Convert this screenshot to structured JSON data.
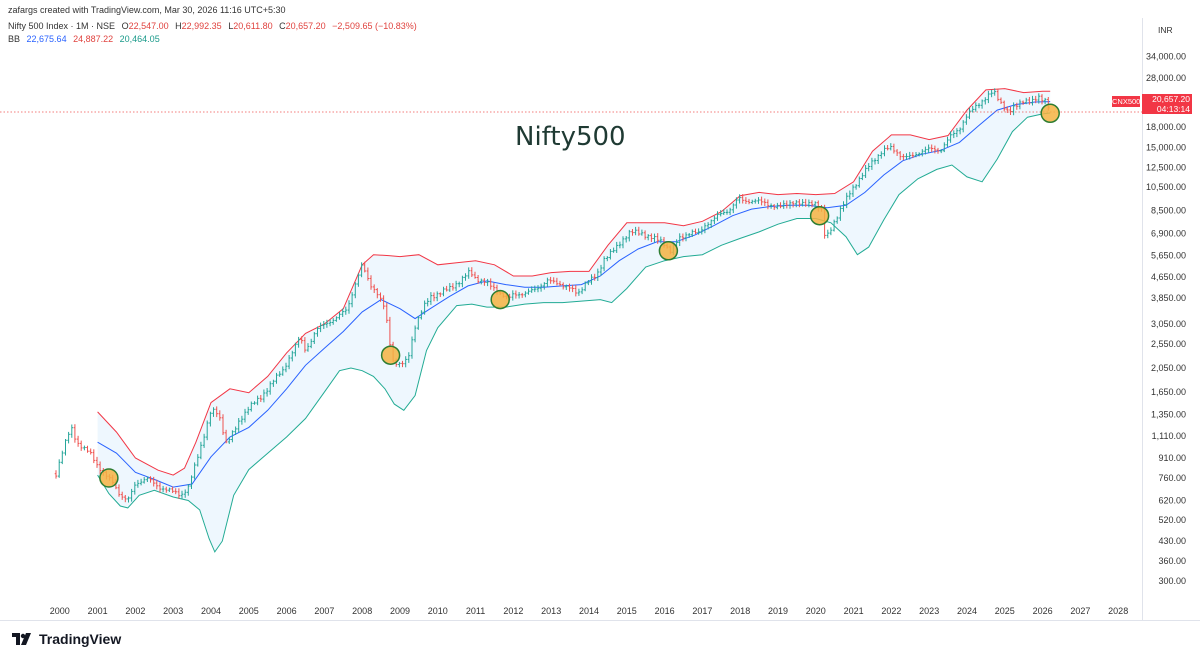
{
  "header": {
    "credit": "zafargs created with TradingView.com, Mar 30, 2026 11:16 UTC+5:30",
    "symbol": "Nifty 500 Index · 1M · NSE",
    "o_label": "O",
    "o_value": "22,547.00",
    "h_label": "H",
    "h_value": "22,992.35",
    "l_label": "L",
    "l_value": "20,611.80",
    "c_label": "C",
    "c_value": "20,657.20",
    "change": "−2,509.65 (−10.83%)",
    "bb_label": "BB",
    "bb_basis": "22,675.64",
    "bb_upper": "24,887.22",
    "bb_lower": "20,464.05"
  },
  "price_axis": {
    "currency": "INR",
    "ticks": [
      "34,000.00",
      "28,000.00",
      "23,000.00",
      "18,000.00",
      "15,000.00",
      "12,500.00",
      "10,500.00",
      "8,500.00",
      "6,900.00",
      "5,650.00",
      "4,650.00",
      "3,850.00",
      "3,050.00",
      "2,550.00",
      "2,050.00",
      "1,650.00",
      "1,350.00",
      "1,110.00",
      "910.00",
      "760.00",
      "620.00",
      "520.00",
      "430.00",
      "360.00",
      "300.00"
    ],
    "last_price": "20,657.20",
    "countdown": "04:13:14",
    "symbol_tag": "CNX500"
  },
  "annotation": "Nifty500",
  "brand": {
    "name": "TradingView"
  },
  "colors": {
    "up": "#26a69a",
    "down": "#ef5350",
    "basis": "#2962ff",
    "upper": "#f23645",
    "lower": "#22ab94",
    "band_fill": "#e3f2fd",
    "circle_fill": "#f5b342",
    "circle_stroke": "#2e7d32"
  },
  "chart_data": {
    "type": "candlestick",
    "scale": "log",
    "interval": "1M",
    "x_ticks": [
      "2000",
      "2001",
      "2002",
      "2003",
      "2004",
      "2005",
      "2006",
      "2007",
      "2008",
      "2009",
      "2010",
      "2011",
      "2012",
      "2013",
      "2014",
      "2015",
      "2016",
      "2017",
      "2018",
      "2019",
      "2020",
      "2021",
      "2022",
      "2023",
      "2024",
      "2025",
      "2026",
      "2027",
      "2028"
    ],
    "ylim": [
      270,
      40000
    ],
    "close_series": [
      [
        1999.9,
        790
      ],
      [
        2000.1,
        1000
      ],
      [
        2000.3,
        1200
      ],
      [
        2000.45,
        1050
      ],
      [
        2000.6,
        1000
      ],
      [
        2000.8,
        950
      ],
      [
        2001.0,
        850
      ],
      [
        2001.2,
        780
      ],
      [
        2001.4,
        730
      ],
      [
        2001.6,
        650
      ],
      [
        2001.8,
        620
      ],
      [
        2002.0,
        720
      ],
      [
        2002.3,
        760
      ],
      [
        2002.6,
        700
      ],
      [
        2002.9,
        680
      ],
      [
        2003.2,
        650
      ],
      [
        2003.4,
        700
      ],
      [
        2003.6,
        870
      ],
      [
        2003.8,
        1100
      ],
      [
        2004.0,
        1400
      ],
      [
        2004.2,
        1350
      ],
      [
        2004.4,
        1050
      ],
      [
        2004.6,
        1150
      ],
      [
        2004.8,
        1300
      ],
      [
        2005.0,
        1450
      ],
      [
        2005.3,
        1550
      ],
      [
        2005.6,
        1800
      ],
      [
        2005.9,
        2000
      ],
      [
        2006.1,
        2300
      ],
      [
        2006.35,
        2700
      ],
      [
        2006.5,
        2400
      ],
      [
        2006.8,
        2900
      ],
      [
        2007.0,
        3050
      ],
      [
        2007.3,
        3200
      ],
      [
        2007.6,
        3500
      ],
      [
        2007.8,
        4300
      ],
      [
        2008.0,
        5200
      ],
      [
        2008.2,
        4400
      ],
      [
        2008.4,
        4000
      ],
      [
        2008.6,
        3500
      ],
      [
        2008.8,
        2200
      ],
      [
        2009.0,
        2100
      ],
      [
        2009.2,
        2200
      ],
      [
        2009.4,
        3000
      ],
      [
        2009.6,
        3500
      ],
      [
        2009.8,
        3900
      ],
      [
        2010.0,
        4000
      ],
      [
        2010.3,
        4200
      ],
      [
        2010.6,
        4500
      ],
      [
        2010.85,
        4900
      ],
      [
        2011.0,
        4600
      ],
      [
        2011.3,
        4400
      ],
      [
        2011.6,
        4100
      ],
      [
        2011.85,
        3800
      ],
      [
        2012.0,
        4000
      ],
      [
        2012.3,
        4000
      ],
      [
        2012.6,
        4200
      ],
      [
        2012.9,
        4500
      ],
      [
        2013.2,
        4400
      ],
      [
        2013.5,
        4200
      ],
      [
        2013.7,
        4000
      ],
      [
        2013.9,
        4400
      ],
      [
        2014.2,
        4700
      ],
      [
        2014.4,
        5500
      ],
      [
        2014.7,
        6000
      ],
      [
        2014.95,
        6700
      ],
      [
        2015.1,
        7000
      ],
      [
        2015.4,
        6900
      ],
      [
        2015.7,
        6600
      ],
      [
        2015.95,
        6400
      ],
      [
        2016.15,
        5900
      ],
      [
        2016.4,
        6600
      ],
      [
        2016.7,
        7000
      ],
      [
        2016.9,
        6900
      ],
      [
        2017.1,
        7500
      ],
      [
        2017.4,
        8100
      ],
      [
        2017.7,
        8500
      ],
      [
        2017.95,
        9500
      ],
      [
        2018.1,
        9200
      ],
      [
        2018.4,
        9300
      ],
      [
        2018.7,
        9000
      ],
      [
        2018.95,
        8800
      ],
      [
        2019.1,
        8800
      ],
      [
        2019.4,
        9200
      ],
      [
        2019.7,
        8900
      ],
      [
        2019.95,
        9200
      ],
      [
        2020.15,
        8500
      ],
      [
        2020.25,
        6500
      ],
      [
        2020.45,
        7500
      ],
      [
        2020.7,
        8800
      ],
      [
        2020.95,
        10300
      ],
      [
        2021.2,
        11500
      ],
      [
        2021.5,
        13300
      ],
      [
        2021.8,
        14600
      ],
      [
        2022.0,
        15000
      ],
      [
        2022.3,
        13700
      ],
      [
        2022.5,
        13800
      ],
      [
        2022.8,
        14500
      ],
      [
        2023.0,
        14800
      ],
      [
        2023.3,
        14600
      ],
      [
        2023.55,
        16500
      ],
      [
        2023.8,
        17800
      ],
      [
        2024.0,
        20000
      ],
      [
        2024.2,
        21500
      ],
      [
        2024.45,
        23200
      ],
      [
        2024.7,
        24800
      ],
      [
        2024.9,
        22500
      ],
      [
        2025.1,
        20500
      ],
      [
        2025.3,
        21800
      ],
      [
        2025.5,
        23100
      ],
      [
        2025.7,
        22500
      ],
      [
        2025.9,
        23500
      ],
      [
        2026.1,
        23000
      ],
      [
        2026.2,
        20657
      ]
    ],
    "bb_upper": [
      [
        2001.0,
        1380
      ],
      [
        2001.5,
        1150
      ],
      [
        2002.0,
        910
      ],
      [
        2002.6,
        815
      ],
      [
        2003.0,
        780
      ],
      [
        2003.3,
        830
      ],
      [
        2003.6,
        1050
      ],
      [
        2004.0,
        1500
      ],
      [
        2004.5,
        1700
      ],
      [
        2005.0,
        1640
      ],
      [
        2005.5,
        1900
      ],
      [
        2006.0,
        2350
      ],
      [
        2006.5,
        2800
      ],
      [
        2007.0,
        3050
      ],
      [
        2007.5,
        3500
      ],
      [
        2008.0,
        5200
      ],
      [
        2008.3,
        5700
      ],
      [
        2008.7,
        5650
      ],
      [
        2009.0,
        5600
      ],
      [
        2009.5,
        5700
      ],
      [
        2010.0,
        5200
      ],
      [
        2010.5,
        5300
      ],
      [
        2011.0,
        5400
      ],
      [
        2011.5,
        5200
      ],
      [
        2012.0,
        4700
      ],
      [
        2012.5,
        4700
      ],
      [
        2013.0,
        4850
      ],
      [
        2013.5,
        4900
      ],
      [
        2014.0,
        4900
      ],
      [
        2014.5,
        6200
      ],
      [
        2015.0,
        7600
      ],
      [
        2015.5,
        7600
      ],
      [
        2016.0,
        7600
      ],
      [
        2016.5,
        7400
      ],
      [
        2017.0,
        7700
      ],
      [
        2017.5,
        8400
      ],
      [
        2018.0,
        9700
      ],
      [
        2018.5,
        10000
      ],
      [
        2019.0,
        9800
      ],
      [
        2019.5,
        9900
      ],
      [
        2020.0,
        9800
      ],
      [
        2020.5,
        9900
      ],
      [
        2021.0,
        11000
      ],
      [
        2021.5,
        14500
      ],
      [
        2022.0,
        16800
      ],
      [
        2022.5,
        16800
      ],
      [
        2023.0,
        16100
      ],
      [
        2023.5,
        16700
      ],
      [
        2024.0,
        21000
      ],
      [
        2024.5,
        25200
      ],
      [
        2025.0,
        25500
      ],
      [
        2025.5,
        24600
      ],
      [
        2026.0,
        24900
      ],
      [
        2026.2,
        24887
      ]
    ],
    "bb_basis": [
      [
        2001.0,
        1050
      ],
      [
        2001.5,
        950
      ],
      [
        2002.0,
        800
      ],
      [
        2002.5,
        750
      ],
      [
        2003.0,
        700
      ],
      [
        2003.5,
        720
      ],
      [
        2004.0,
        920
      ],
      [
        2004.5,
        1100
      ],
      [
        2005.0,
        1200
      ],
      [
        2005.5,
        1400
      ],
      [
        2006.0,
        1700
      ],
      [
        2006.5,
        2100
      ],
      [
        2007.0,
        2450
      ],
      [
        2007.5,
        2850
      ],
      [
        2008.0,
        3400
      ],
      [
        2008.5,
        3800
      ],
      [
        2009.0,
        3500
      ],
      [
        2009.4,
        3200
      ],
      [
        2009.8,
        3500
      ],
      [
        2010.3,
        3900
      ],
      [
        2010.8,
        4300
      ],
      [
        2011.3,
        4500
      ],
      [
        2011.8,
        4350
      ],
      [
        2012.3,
        4250
      ],
      [
        2012.8,
        4250
      ],
      [
        2013.3,
        4300
      ],
      [
        2013.8,
        4350
      ],
      [
        2014.3,
        4700
      ],
      [
        2014.8,
        5400
      ],
      [
        2015.3,
        6000
      ],
      [
        2015.8,
        6400
      ],
      [
        2016.3,
        6400
      ],
      [
        2016.8,
        6800
      ],
      [
        2017.3,
        7400
      ],
      [
        2017.8,
        8100
      ],
      [
        2018.3,
        8600
      ],
      [
        2018.8,
        8800
      ],
      [
        2019.3,
        8900
      ],
      [
        2019.8,
        8900
      ],
      [
        2020.3,
        8700
      ],
      [
        2020.8,
        8900
      ],
      [
        2021.3,
        10000
      ],
      [
        2021.8,
        11700
      ],
      [
        2022.3,
        13300
      ],
      [
        2022.8,
        14100
      ],
      [
        2023.3,
        14600
      ],
      [
        2023.8,
        15700
      ],
      [
        2024.3,
        18200
      ],
      [
        2024.8,
        21000
      ],
      [
        2025.3,
        22100
      ],
      [
        2025.8,
        22600
      ],
      [
        2026.2,
        22676
      ]
    ],
    "bb_lower": [
      [
        2001.0,
        780
      ],
      [
        2001.3,
        660
      ],
      [
        2001.6,
        590
      ],
      [
        2001.8,
        580
      ],
      [
        2002.1,
        650
      ],
      [
        2002.5,
        680
      ],
      [
        2003.0,
        640
      ],
      [
        2003.4,
        620
      ],
      [
        2003.7,
        570
      ],
      [
        2003.95,
        440
      ],
      [
        2004.1,
        390
      ],
      [
        2004.3,
        430
      ],
      [
        2004.6,
        650
      ],
      [
        2005.0,
        820
      ],
      [
        2005.5,
        950
      ],
      [
        2006.0,
        1100
      ],
      [
        2006.5,
        1300
      ],
      [
        2007.0,
        1650
      ],
      [
        2007.4,
        2000
      ],
      [
        2007.7,
        2050
      ],
      [
        2008.0,
        2000
      ],
      [
        2008.3,
        1900
      ],
      [
        2008.6,
        1700
      ],
      [
        2008.85,
        1480
      ],
      [
        2009.1,
        1400
      ],
      [
        2009.4,
        1600
      ],
      [
        2009.7,
        2400
      ],
      [
        2010.0,
        2950
      ],
      [
        2010.5,
        3600
      ],
      [
        2010.9,
        3650
      ],
      [
        2011.3,
        3550
      ],
      [
        2011.8,
        3550
      ],
      [
        2012.3,
        3650
      ],
      [
        2012.8,
        3700
      ],
      [
        2013.3,
        3700
      ],
      [
        2013.8,
        3750
      ],
      [
        2014.3,
        3800
      ],
      [
        2014.6,
        3700
      ],
      [
        2015.0,
        4200
      ],
      [
        2015.5,
        5100
      ],
      [
        2016.0,
        5400
      ],
      [
        2016.5,
        5600
      ],
      [
        2017.0,
        5700
      ],
      [
        2017.5,
        6200
      ],
      [
        2018.0,
        6600
      ],
      [
        2018.5,
        7000
      ],
      [
        2019.0,
        7500
      ],
      [
        2019.5,
        7900
      ],
      [
        2020.0,
        7900
      ],
      [
        2020.4,
        7600
      ],
      [
        2020.8,
        6700
      ],
      [
        2021.1,
        5700
      ],
      [
        2021.4,
        6100
      ],
      [
        2021.8,
        7800
      ],
      [
        2022.2,
        9800
      ],
      [
        2022.7,
        11300
      ],
      [
        2023.2,
        12300
      ],
      [
        2023.6,
        12800
      ],
      [
        2024.0,
        11500
      ],
      [
        2024.4,
        11000
      ],
      [
        2024.8,
        13500
      ],
      [
        2025.2,
        17300
      ],
      [
        2025.6,
        19700
      ],
      [
        2026.0,
        20300
      ],
      [
        2026.2,
        20464
      ]
    ],
    "markers": [
      [
        2001.3,
        760
      ],
      [
        2008.75,
        2300
      ],
      [
        2011.65,
        3800
      ],
      [
        2016.1,
        5900
      ],
      [
        2020.1,
        8100
      ],
      [
        2026.2,
        20400
      ]
    ]
  }
}
